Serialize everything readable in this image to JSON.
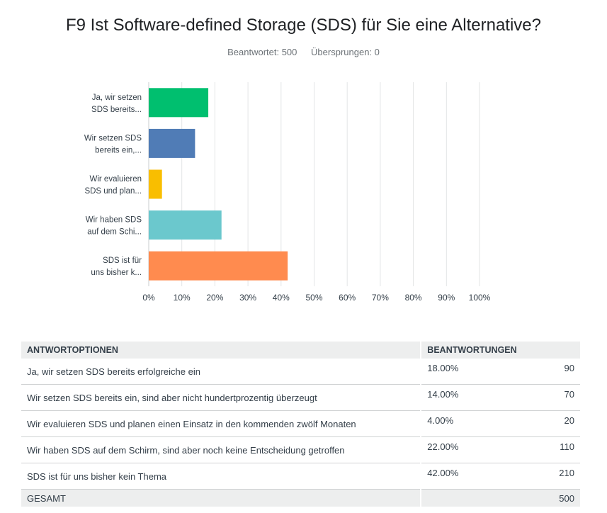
{
  "survey": {
    "title": "F9 Ist Software-defined Storage (SDS) für Sie eine Alternative?",
    "answered": "Beantwortet: 500",
    "skipped": "Übersprungen: 0"
  },
  "chart_data": {
    "type": "bar",
    "orientation": "horizontal",
    "categories": [
      [
        "Ja, wir setzen",
        "SDS bereits..."
      ],
      [
        "Wir setzen SDS",
        "bereits ein,..."
      ],
      [
        "Wir evaluieren",
        "SDS und plan..."
      ],
      [
        "Wir haben SDS",
        "auf dem Schi..."
      ],
      [
        "SDS ist für",
        "uns bisher k..."
      ]
    ],
    "values": [
      18,
      14,
      4,
      22,
      42
    ],
    "colors": [
      "#00bf6f",
      "#507cb6",
      "#f9be00",
      "#6bc8cd",
      "#ff8b4f"
    ],
    "xlim": [
      0,
      100
    ],
    "ticks": [
      "0%",
      "10%",
      "20%",
      "30%",
      "40%",
      "50%",
      "60%",
      "70%",
      "80%",
      "90%",
      "100%"
    ],
    "grid": true
  },
  "table": {
    "headers": {
      "option": "ANTWORTOPTIONEN",
      "responses": "BEANTWORTUNGEN"
    },
    "rows": [
      {
        "option": "Ja, wir setzen SDS bereits erfolgreiche ein",
        "percent": "18.00%",
        "count": "90"
      },
      {
        "option": "Wir setzen SDS bereits ein, sind aber nicht hundertprozentig überzeugt",
        "percent": "14.00%",
        "count": "70"
      },
      {
        "option": "Wir evaluieren SDS und planen einen Einsatz in den kommenden zwölf Monaten",
        "percent": "4.00%",
        "count": "20"
      },
      {
        "option": "Wir haben SDS auf dem Schirm, sind aber noch keine Entscheidung getroffen",
        "percent": "22.00%",
        "count": "110"
      },
      {
        "option": "SDS ist für uns bisher kein Thema",
        "percent": "42.00%",
        "count": "210"
      }
    ],
    "total": {
      "label": "GESAMT",
      "count": "500"
    }
  }
}
